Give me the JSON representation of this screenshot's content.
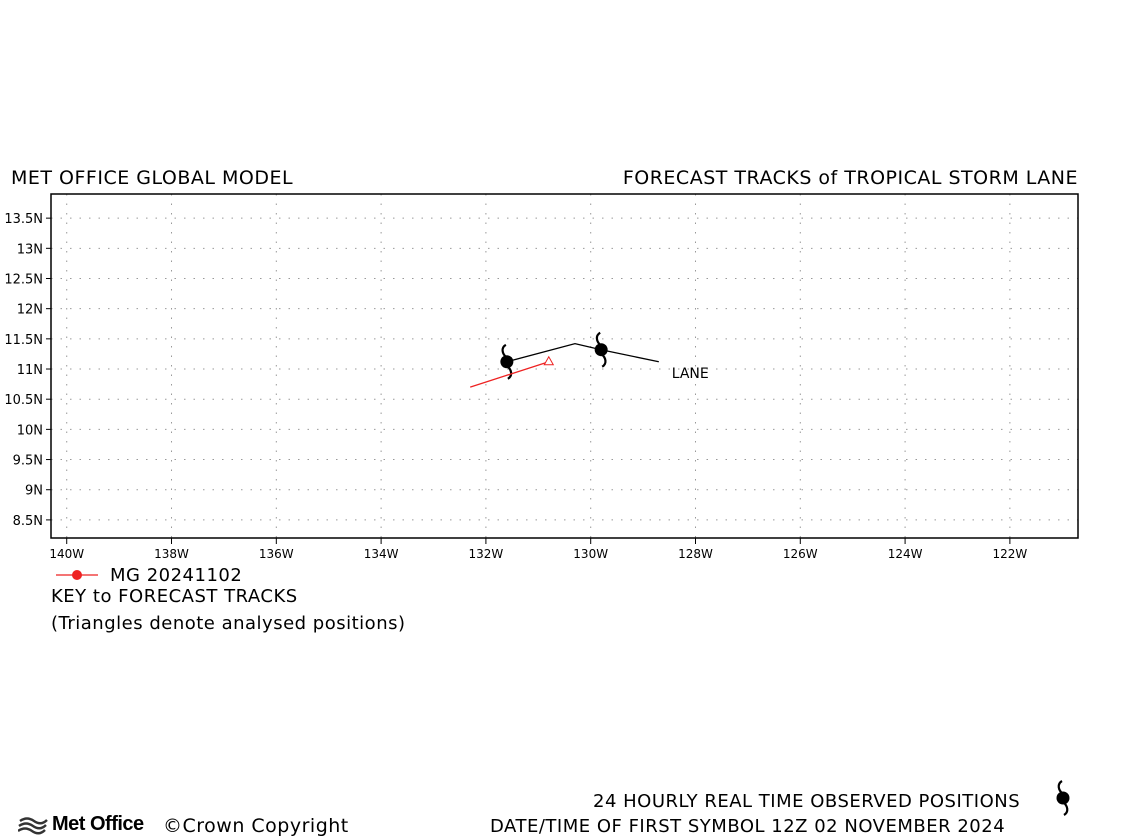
{
  "header": {
    "left_title": "MET OFFICE GLOBAL MODEL",
    "right_title": "FORECAST TRACKS of TROPICAL STORM LANE"
  },
  "chart_data": {
    "type": "line",
    "title": "FORECAST TRACKS of TROPICAL STORM LANE",
    "xlabel": "",
    "ylabel": "",
    "xlim": [
      -140.3,
      -120.7
    ],
    "ylim": [
      8.2,
      13.9
    ],
    "grid": true,
    "x_ticks": [
      -140,
      -138,
      -136,
      -134,
      -132,
      -130,
      -128,
      -126,
      -124,
      -122
    ],
    "x_tick_labels": [
      "140W",
      "138W",
      "136W",
      "134W",
      "132W",
      "130W",
      "128W",
      "126W",
      "124W",
      "122W"
    ],
    "y_ticks": [
      8.5,
      9,
      9.5,
      10,
      10.5,
      11,
      11.5,
      12,
      12.5,
      13,
      13.5
    ],
    "y_tick_labels": [
      "8.5N",
      "9N",
      "9.5N",
      "10N",
      "10.5N",
      "11N",
      "11.5N",
      "12N",
      "12.5N",
      "13N",
      "13.5N"
    ],
    "series": [
      {
        "name": "LANE",
        "color": "#000000",
        "x": [
          -131.6,
          -130.3,
          -129.8,
          -128.7
        ],
        "y": [
          11.12,
          11.42,
          11.32,
          11.12
        ],
        "markers": "observed-storm-symbol",
        "marker_x": [
          -131.6,
          -129.8
        ],
        "marker_y": [
          11.12,
          11.32
        ]
      },
      {
        "name": "MG 20241102",
        "color": "#ee2222",
        "x": [
          -130.8,
          -132.3
        ],
        "y": [
          11.12,
          10.7
        ],
        "markers": "analysed-triangle",
        "marker_x": [
          -130.8
        ],
        "marker_y": [
          11.12
        ]
      }
    ],
    "annotations": [
      {
        "text": "LANE",
        "x": -128.1,
        "y": 10.85
      }
    ],
    "legend": {
      "placement": "bottom-left",
      "entries": [
        "MG 20241102"
      ]
    }
  },
  "key": {
    "legend_label": "MG 20241102",
    "title": "KEY to FORECAST TRACKS",
    "note": "(Triangles denote analysed positions)"
  },
  "footer": {
    "observed": "24 HOURLY REAL TIME OBSERVED POSITIONS",
    "datetime": "DATE/TIME OF FIRST SYMBOL 12Z 02 NOVEMBER 2024",
    "logo_text": "Met Office",
    "copyright": "©Crown Copyright",
    "storm_icon": "cyclone-icon",
    "logo_icon": "met-office-logo-icon"
  }
}
